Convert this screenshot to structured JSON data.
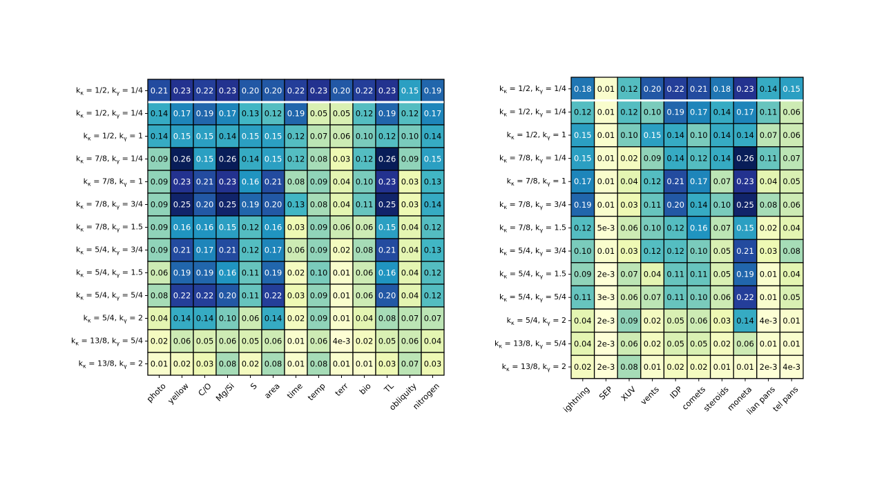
{
  "chart_data": [
    {
      "type": "heatmap",
      "rows": [
        "k_κ = 1/2,  k_γ = 1/4",
        "k_κ = 1/2,  k_γ = 1/4",
        "k_κ = 1/2,  k_γ = 1",
        "k_κ = 7/8,  k_γ = 1/4",
        "k_κ = 7/8,  k_γ = 1",
        "k_κ = 7/8,  k_γ = 3/4",
        "k_κ = 7/8,  k_γ = 1.5",
        "k_κ = 5/4,  k_γ = 3/4",
        "k_κ = 5/4,  k_γ = 1.5",
        "k_κ = 5/4,  k_γ = 5/4",
        "k_κ = 5/4,  k_γ = 2",
        "k_κ = 13/8,  k_γ = 5/4",
        "k_κ = 13/8,  k_γ = 2"
      ],
      "columns": [
        "photo",
        "yellow",
        "C/O",
        "Mg/Si",
        "S",
        "area",
        "time",
        "temp",
        "terr",
        "bio",
        "TL",
        "obliquity",
        "nitrogen"
      ],
      "values": [
        [
          0.21,
          0.23,
          0.22,
          0.23,
          0.2,
          0.2,
          0.22,
          0.23,
          0.2,
          0.22,
          0.23,
          0.15,
          0.19
        ],
        [
          0.14,
          0.17,
          0.19,
          0.17,
          0.13,
          0.12,
          0.19,
          0.05,
          0.05,
          0.12,
          0.19,
          0.12,
          0.17
        ],
        [
          0.14,
          0.15,
          0.15,
          0.14,
          0.15,
          0.15,
          0.12,
          0.07,
          0.06,
          0.1,
          0.12,
          0.1,
          0.14
        ],
        [
          0.09,
          0.26,
          0.15,
          0.26,
          0.14,
          0.15,
          0.12,
          0.08,
          0.03,
          0.12,
          0.26,
          0.09,
          0.15
        ],
        [
          0.09,
          0.23,
          0.21,
          0.23,
          0.16,
          0.21,
          0.08,
          0.09,
          0.04,
          0.1,
          0.23,
          0.03,
          0.13
        ],
        [
          0.09,
          0.25,
          0.2,
          0.25,
          0.19,
          0.2,
          0.13,
          0.08,
          0.04,
          0.11,
          0.25,
          0.03,
          0.14
        ],
        [
          0.09,
          0.16,
          0.16,
          0.15,
          0.12,
          0.16,
          0.03,
          0.09,
          0.06,
          0.06,
          0.15,
          0.04,
          0.12
        ],
        [
          0.09,
          0.21,
          0.17,
          0.21,
          0.12,
          0.17,
          0.06,
          0.09,
          0.02,
          0.08,
          0.21,
          0.04,
          0.13
        ],
        [
          0.06,
          0.19,
          0.19,
          0.16,
          0.11,
          0.19,
          0.02,
          0.1,
          0.01,
          0.06,
          0.16,
          0.04,
          0.12
        ],
        [
          0.08,
          0.22,
          0.22,
          0.2,
          0.11,
          0.22,
          0.03,
          0.09,
          0.01,
          0.06,
          0.2,
          0.04,
          0.12
        ],
        [
          0.04,
          0.14,
          0.14,
          0.1,
          0.06,
          0.14,
          0.02,
          0.09,
          0.01,
          0.04,
          0.08,
          0.07,
          0.07
        ],
        [
          0.02,
          0.06,
          0.05,
          0.06,
          0.05,
          0.06,
          0.01,
          0.06,
          0.004,
          0.02,
          0.05,
          0.06,
          0.04
        ],
        [
          0.01,
          0.02,
          0.03,
          0.08,
          0.02,
          0.08,
          0.01,
          0.08,
          0.01,
          0.01,
          0.03,
          0.07,
          0.03
        ]
      ],
      "value_labels": [
        [
          "0.21",
          "0.23",
          "0.22",
          "0.23",
          "0.20",
          "0.20",
          "0.22",
          "0.23",
          "0.20",
          "0.22",
          "0.23",
          "0.15",
          "0.19"
        ],
        [
          "0.14",
          "0.17",
          "0.19",
          "0.17",
          "0.13",
          "0.12",
          "0.19",
          "0.05",
          "0.05",
          "0.12",
          "0.19",
          "0.12",
          "0.17"
        ],
        [
          "0.14",
          "0.15",
          "0.15",
          "0.14",
          "0.15",
          "0.15",
          "0.12",
          "0.07",
          "0.06",
          "0.10",
          "0.12",
          "0.10",
          "0.14"
        ],
        [
          "0.09",
          "0.26",
          "0.15",
          "0.26",
          "0.14",
          "0.15",
          "0.12",
          "0.08",
          "0.03",
          "0.12",
          "0.26",
          "0.09",
          "0.15"
        ],
        [
          "0.09",
          "0.23",
          "0.21",
          "0.23",
          "0.16",
          "0.21",
          "0.08",
          "0.09",
          "0.04",
          "0.10",
          "0.23",
          "0.03",
          "0.13"
        ],
        [
          "0.09",
          "0.25",
          "0.20",
          "0.25",
          "0.19",
          "0.20",
          "0.13",
          "0.08",
          "0.04",
          "0.11",
          "0.25",
          "0.03",
          "0.14"
        ],
        [
          "0.09",
          "0.16",
          "0.16",
          "0.15",
          "0.12",
          "0.16",
          "0.03",
          "0.09",
          "0.06",
          "0.06",
          "0.15",
          "0.04",
          "0.12"
        ],
        [
          "0.09",
          "0.21",
          "0.17",
          "0.21",
          "0.12",
          "0.17",
          "0.06",
          "0.09",
          "0.02",
          "0.08",
          "0.21",
          "0.04",
          "0.13"
        ],
        [
          "0.06",
          "0.19",
          "0.19",
          "0.16",
          "0.11",
          "0.19",
          "0.02",
          "0.10",
          "0.01",
          "0.06",
          "0.16",
          "0.04",
          "0.12"
        ],
        [
          "0.08",
          "0.22",
          "0.22",
          "0.20",
          "0.11",
          "0.22",
          "0.03",
          "0.09",
          "0.01",
          "0.06",
          "0.20",
          "0.04",
          "0.12"
        ],
        [
          "0.04",
          "0.14",
          "0.14",
          "0.10",
          "0.06",
          "0.14",
          "0.02",
          "0.09",
          "0.01",
          "0.04",
          "0.08",
          "0.07",
          "0.07"
        ],
        [
          "0.02",
          "0.06",
          "0.05",
          "0.06",
          "0.05",
          "0.06",
          "0.01",
          "0.06",
          "4e-3",
          "0.02",
          "0.05",
          "0.06",
          "0.04"
        ],
        [
          "0.01",
          "0.02",
          "0.03",
          "0.08",
          "0.02",
          "0.08",
          "0.01",
          "0.08",
          "0.01",
          "0.01",
          "0.03",
          "0.07",
          "0.03"
        ]
      ],
      "colormap": "YlGnBu",
      "value_range": [
        0,
        0.26
      ],
      "separator_after_row": 0
    },
    {
      "type": "heatmap",
      "rows": [
        "k_κ = 1/2,  k_γ = 1/4",
        "k_κ = 1/2,  k_γ = 1/4",
        "k_κ = 1/2,  k_γ = 1",
        "k_κ = 7/8,  k_γ = 1/4",
        "k_κ = 7/8,  k_γ = 1",
        "k_κ = 7/8,  k_γ = 3/4",
        "k_κ = 7/8,  k_γ = 1.5",
        "k_κ = 5/4,  k_γ = 3/4",
        "k_κ = 5/4,  k_γ = 1.5",
        "k_κ = 5/4,  k_γ = 5/4",
        "k_κ = 5/4,  k_γ = 2",
        "k_κ = 13/8,  k_γ = 5/4",
        "k_κ = 13/8,  k_γ = 2"
      ],
      "columns": [
        "lightning",
        "SEP",
        "XUV",
        "vents",
        "IDP",
        "comets",
        "asteroids",
        "moneta",
        "stellar pans",
        "stel pans"
      ],
      "column_display": [
        "ightning",
        "SEP",
        "XUV",
        "vents",
        "IDP",
        "comets",
        "steroids",
        "moneta",
        "lian pans",
        "tel pans"
      ],
      "values": [
        [
          0.18,
          0.01,
          0.12,
          0.2,
          0.22,
          0.21,
          0.18,
          0.23,
          0.14,
          0.15
        ],
        [
          0.12,
          0.01,
          0.12,
          0.1,
          0.19,
          0.17,
          0.14,
          0.17,
          0.11,
          0.06
        ],
        [
          0.15,
          0.01,
          0.1,
          0.15,
          0.14,
          0.1,
          0.14,
          0.14,
          0.07,
          0.06
        ],
        [
          0.15,
          0.01,
          0.02,
          0.09,
          0.14,
          0.12,
          0.14,
          0.26,
          0.11,
          0.07
        ],
        [
          0.17,
          0.01,
          0.04,
          0.12,
          0.21,
          0.17,
          0.07,
          0.23,
          0.04,
          0.05
        ],
        [
          0.19,
          0.01,
          0.03,
          0.11,
          0.2,
          0.14,
          0.1,
          0.25,
          0.08,
          0.06
        ],
        [
          0.12,
          0.005,
          0.06,
          0.1,
          0.12,
          0.16,
          0.07,
          0.15,
          0.02,
          0.04
        ],
        [
          0.1,
          0.01,
          0.03,
          0.12,
          0.12,
          0.1,
          0.05,
          0.21,
          0.03,
          0.08
        ],
        [
          0.09,
          0.002,
          0.07,
          0.04,
          0.11,
          0.11,
          0.05,
          0.19,
          0.01,
          0.04
        ],
        [
          0.11,
          0.003,
          0.06,
          0.07,
          0.11,
          0.1,
          0.06,
          0.22,
          0.01,
          0.05
        ],
        [
          0.04,
          0.002,
          0.09,
          0.02,
          0.05,
          0.06,
          0.03,
          0.14,
          0.004,
          0.01
        ],
        [
          0.04,
          0.002,
          0.06,
          0.02,
          0.05,
          0.05,
          0.02,
          0.06,
          0.01,
          0.01
        ],
        [
          0.02,
          0.002,
          0.08,
          0.01,
          0.02,
          0.02,
          0.01,
          0.01,
          0.002,
          0.004
        ]
      ],
      "value_labels": [
        [
          "0.18",
          "0.01",
          "0.12",
          "0.20",
          "0.22",
          "0.21",
          "0.18",
          "0.23",
          "0.14",
          "0.15"
        ],
        [
          "0.12",
          "0.01",
          "0.12",
          "0.10",
          "0.19",
          "0.17",
          "0.14",
          "0.17",
          "0.11",
          "0.06"
        ],
        [
          "0.15",
          "0.01",
          "0.10",
          "0.15",
          "0.14",
          "0.10",
          "0.14",
          "0.14",
          "0.07",
          "0.06"
        ],
        [
          "0.15",
          "0.01",
          "0.02",
          "0.09",
          "0.14",
          "0.12",
          "0.14",
          "0.26",
          "0.11",
          "0.07"
        ],
        [
          "0.17",
          "0.01",
          "0.04",
          "0.12",
          "0.21",
          "0.17",
          "0.07",
          "0.23",
          "0.04",
          "0.05"
        ],
        [
          "0.19",
          "0.01",
          "0.03",
          "0.11",
          "0.20",
          "0.14",
          "0.10",
          "0.25",
          "0.08",
          "0.06"
        ],
        [
          "0.12",
          "5e-3",
          "0.06",
          "0.10",
          "0.12",
          "0.16",
          "0.07",
          "0.15",
          "0.02",
          "0.04"
        ],
        [
          "0.10",
          "0.01",
          "0.03",
          "0.12",
          "0.12",
          "0.10",
          "0.05",
          "0.21",
          "0.03",
          "0.08"
        ],
        [
          "0.09",
          "2e-3",
          "0.07",
          "0.04",
          "0.11",
          "0.11",
          "0.05",
          "0.19",
          "0.01",
          "0.04"
        ],
        [
          "0.11",
          "3e-3",
          "0.06",
          "0.07",
          "0.11",
          "0.10",
          "0.06",
          "0.22",
          "0.01",
          "0.05"
        ],
        [
          "0.04",
          "2e-3",
          "0.09",
          "0.02",
          "0.05",
          "0.06",
          "0.03",
          "0.14",
          "4e-3",
          "0.01"
        ],
        [
          "0.04",
          "2e-3",
          "0.06",
          "0.02",
          "0.05",
          "0.05",
          "0.02",
          "0.06",
          "0.01",
          "0.01"
        ],
        [
          "0.02",
          "2e-3",
          "0.08",
          "0.01",
          "0.02",
          "0.02",
          "0.01",
          "0.01",
          "2e-3",
          "4e-3"
        ]
      ],
      "colormap": "YlGnBu",
      "value_range": [
        0,
        0.26
      ],
      "separator_after_row": 0
    }
  ]
}
